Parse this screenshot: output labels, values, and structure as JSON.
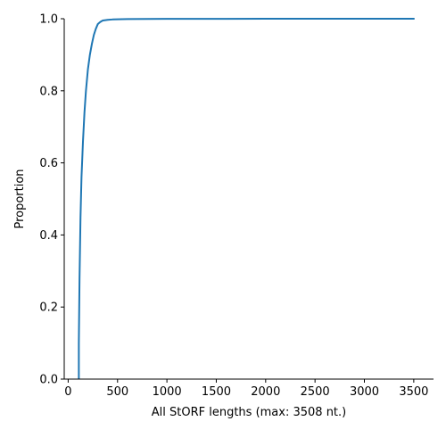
{
  "chart_data": {
    "type": "line",
    "title": "",
    "xlabel": "All StORF lengths (max: 3508 nt.)",
    "ylabel": "Proportion",
    "xlim": [
      -40,
      3700
    ],
    "ylim": [
      0,
      1.0
    ],
    "xticks": [
      0,
      500,
      1000,
      1500,
      2000,
      2500,
      3000,
      3500
    ],
    "yticks": [
      0.0,
      0.2,
      0.4,
      0.6,
      0.8,
      1.0
    ],
    "ytick_labels": [
      "0.0",
      "0.2",
      "0.4",
      "0.6",
      "0.8",
      "1.0"
    ],
    "grid": false,
    "series": [
      {
        "color": "#1f77b4",
        "x": [
          108,
          108,
          115,
          125,
          135,
          150,
          165,
          180,
          200,
          220,
          240,
          260,
          280,
          300,
          325,
          350,
          400,
          450,
          500,
          600,
          800,
          1000,
          1500,
          2000,
          2500,
          3000,
          3508
        ],
        "y": [
          0.0,
          0.1,
          0.28,
          0.45,
          0.56,
          0.66,
          0.74,
          0.8,
          0.86,
          0.9,
          0.93,
          0.955,
          0.972,
          0.985,
          0.991,
          0.995,
          0.997,
          0.998,
          0.9985,
          0.999,
          0.9995,
          0.9997,
          0.9998,
          0.9999,
          0.99995,
          0.99998,
          1.0
        ]
      }
    ]
  }
}
